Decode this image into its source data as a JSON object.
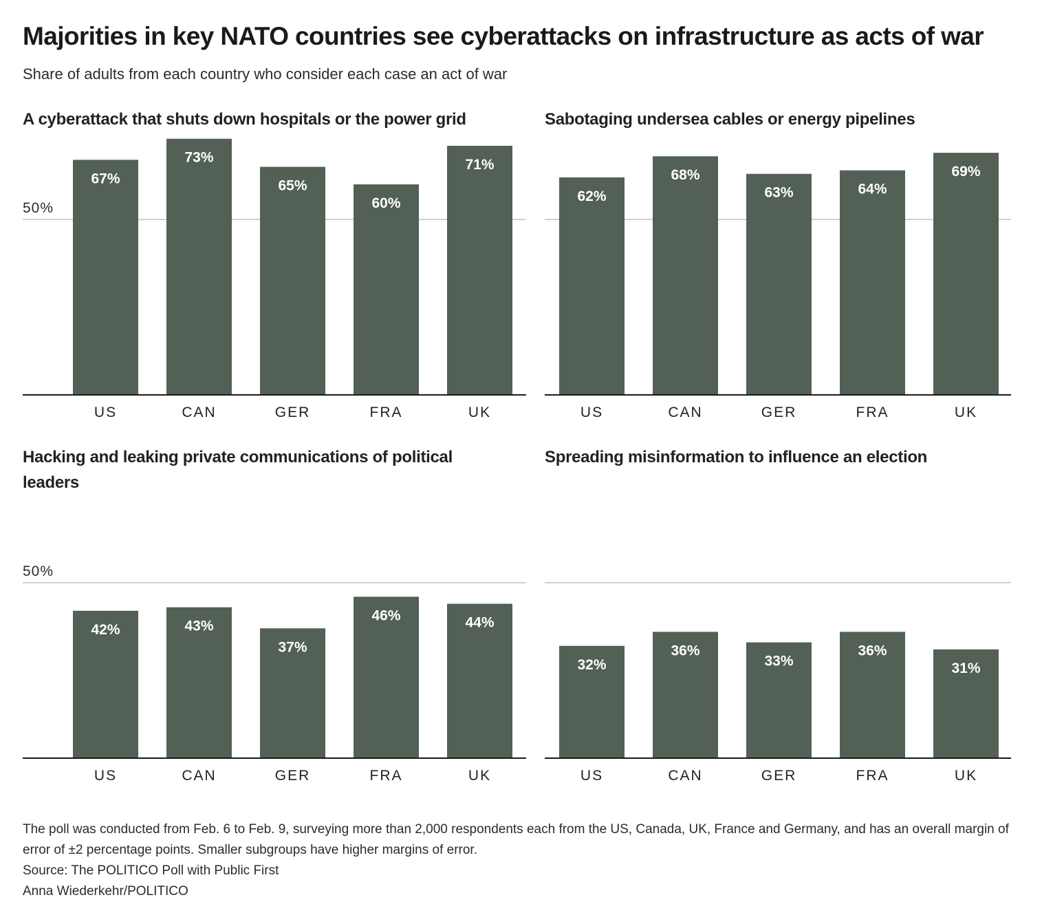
{
  "header": {
    "title": "Majorities in key NATO countries see cyberattacks on infrastructure as acts of war",
    "subtitle": "Share of adults from each country who consider each case an act of war"
  },
  "colors": {
    "bar": "#536055",
    "bar_label": "#ffffff",
    "gridline": "#b5b5b5",
    "axis": "#1a1a1a"
  },
  "chart_data": [
    {
      "type": "bar",
      "title": "A cyberattack that shuts down hospitals or the power grid",
      "categories": [
        "US",
        "CAN",
        "GER",
        "FRA",
        "UK"
      ],
      "values": [
        67,
        73,
        65,
        60,
        71
      ],
      "data_labels": [
        "67%",
        "73%",
        "65%",
        "60%",
        "71%"
      ],
      "gridline_value": 50,
      "gridline_label": "50%",
      "ylim": [
        0,
        75
      ],
      "xlabel": "",
      "ylabel": ""
    },
    {
      "type": "bar",
      "title": "Sabotaging undersea cables or energy pipelines",
      "categories": [
        "US",
        "CAN",
        "GER",
        "FRA",
        "UK"
      ],
      "values": [
        62,
        68,
        63,
        64,
        69
      ],
      "data_labels": [
        "62%",
        "68%",
        "63%",
        "64%",
        "69%"
      ],
      "gridline_value": 50,
      "gridline_label": "",
      "ylim": [
        0,
        75
      ],
      "xlabel": "",
      "ylabel": ""
    },
    {
      "type": "bar",
      "title": "Hacking and leaking private communications of political leaders",
      "categories": [
        "US",
        "CAN",
        "GER",
        "FRA",
        "UK"
      ],
      "values": [
        42,
        43,
        37,
        46,
        44
      ],
      "data_labels": [
        "42%",
        "43%",
        "37%",
        "46%",
        "44%"
      ],
      "gridline_value": 50,
      "gridline_label": "50%",
      "ylim": [
        0,
        75
      ],
      "xlabel": "",
      "ylabel": ""
    },
    {
      "type": "bar",
      "title": "Spreading misinformation to influence an election",
      "categories": [
        "US",
        "CAN",
        "GER",
        "FRA",
        "UK"
      ],
      "values": [
        32,
        36,
        33,
        36,
        31
      ],
      "data_labels": [
        "32%",
        "36%",
        "33%",
        "36%",
        "31%"
      ],
      "gridline_value": 50,
      "gridline_label": "",
      "ylim": [
        0,
        75
      ],
      "xlabel": "",
      "ylabel": ""
    }
  ],
  "footer": {
    "note": "The poll was conducted from Feb. 6 to Feb. 9, surveying more than 2,000 respondents each from the US, Canada, UK, France and Germany, and has an overall margin of error of ±2 percentage points. Smaller subgroups have higher margins of error.",
    "source": "Source: The POLITICO Poll with Public First",
    "credit": "Anna Wiederkehr/POLITICO"
  }
}
